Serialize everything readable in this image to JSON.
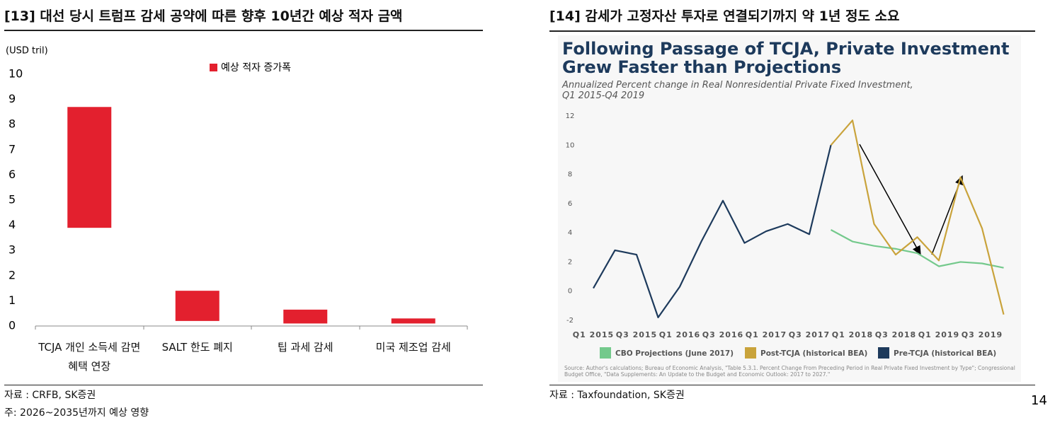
{
  "chart_data": [
    {
      "type": "range_bar",
      "heading": "[13] 대선 당시 트럼프 감세 공약에 따른 향후 10년간 예상 적자 금액",
      "unit": "(USD tril)",
      "categories": [
        "TCJA 개인 소득세 감면 혜택 연장",
        "SALT 한도 폐지",
        "팁 과세 감세",
        "미국 제조업 감세"
      ],
      "series": [
        {
          "name": "예상 적자 증가폭",
          "color": "#e3202e",
          "low": [
            3.9,
            0.2,
            0.1,
            0.1
          ],
          "high": [
            8.7,
            1.4,
            0.65,
            0.3
          ]
        }
      ],
      "ylim": [
        0,
        10
      ],
      "yticks": [
        0,
        1,
        2,
        3,
        4,
        5,
        6,
        7,
        8,
        9,
        10
      ],
      "source": "자료 : CRFB, SK증권",
      "note": "주: 2026~2035년까지 예상 영향"
    },
    {
      "type": "line",
      "heading": "[14] 감세가 고정자산 투자로 연결되기까지 약 1년 정도 소요",
      "title_lines": [
        "Following Passage of TCJA, Private Investment",
        "Grew Faster than Projections"
      ],
      "subtitle_lines": [
        "Annualized Percent change in Real Nonresidential Private Fixed Investment,",
        "Q1 2015-Q4 2019"
      ],
      "categories": [
        "Q1 2015",
        null,
        "Q3 2015",
        null,
        "Q1 2016",
        null,
        "Q3 2016",
        null,
        "Q1 2017",
        null,
        "Q3 2017",
        null,
        "Q1 2018",
        null,
        "Q3 2018",
        null,
        "Q1 2019",
        null,
        "Q3 2019",
        null
      ],
      "series": [
        {
          "name": "CBO Projections (June 2017)",
          "color": "#74c98c",
          "values": [
            null,
            null,
            null,
            null,
            null,
            null,
            null,
            null,
            null,
            null,
            null,
            4.2,
            3.4,
            3.1,
            2.9,
            2.6,
            1.7,
            2.0,
            1.9,
            1.6
          ]
        },
        {
          "name": "Post-TCJA (historical BEA)",
          "color": "#c9a33b",
          "values": [
            null,
            null,
            null,
            null,
            null,
            null,
            null,
            null,
            null,
            null,
            null,
            10.0,
            11.7,
            4.6,
            2.5,
            3.7,
            2.1,
            7.8,
            4.3,
            -1.6
          ]
        },
        {
          "name": "Pre-TCJA (historical BEA)",
          "color": "#1d3a5c",
          "values": [
            0.2,
            2.8,
            2.5,
            -1.8,
            0.3,
            3.4,
            6.2,
            3.3,
            4.1,
            4.6,
            3.9,
            10.0,
            null,
            null,
            null,
            null,
            null,
            null,
            null,
            null
          ]
        }
      ],
      "ylim": [
        -2,
        12
      ],
      "yticks": [
        -2,
        0,
        2,
        4,
        6,
        8,
        10,
        12
      ],
      "chart_source": "Source: Author's calculations; Bureau of Economic Analysis, \"Table 5.3.1. Percent Change From Preceding Period in Real Private Fixed Investment by Type\"; Congressional Budget Office, \"Data Supplements: An Update to the Budget and Economic Outlook: 2017 to 2027.\"",
      "source": "자료 : Taxfoundation, SK증권"
    }
  ],
  "page_number": "14"
}
